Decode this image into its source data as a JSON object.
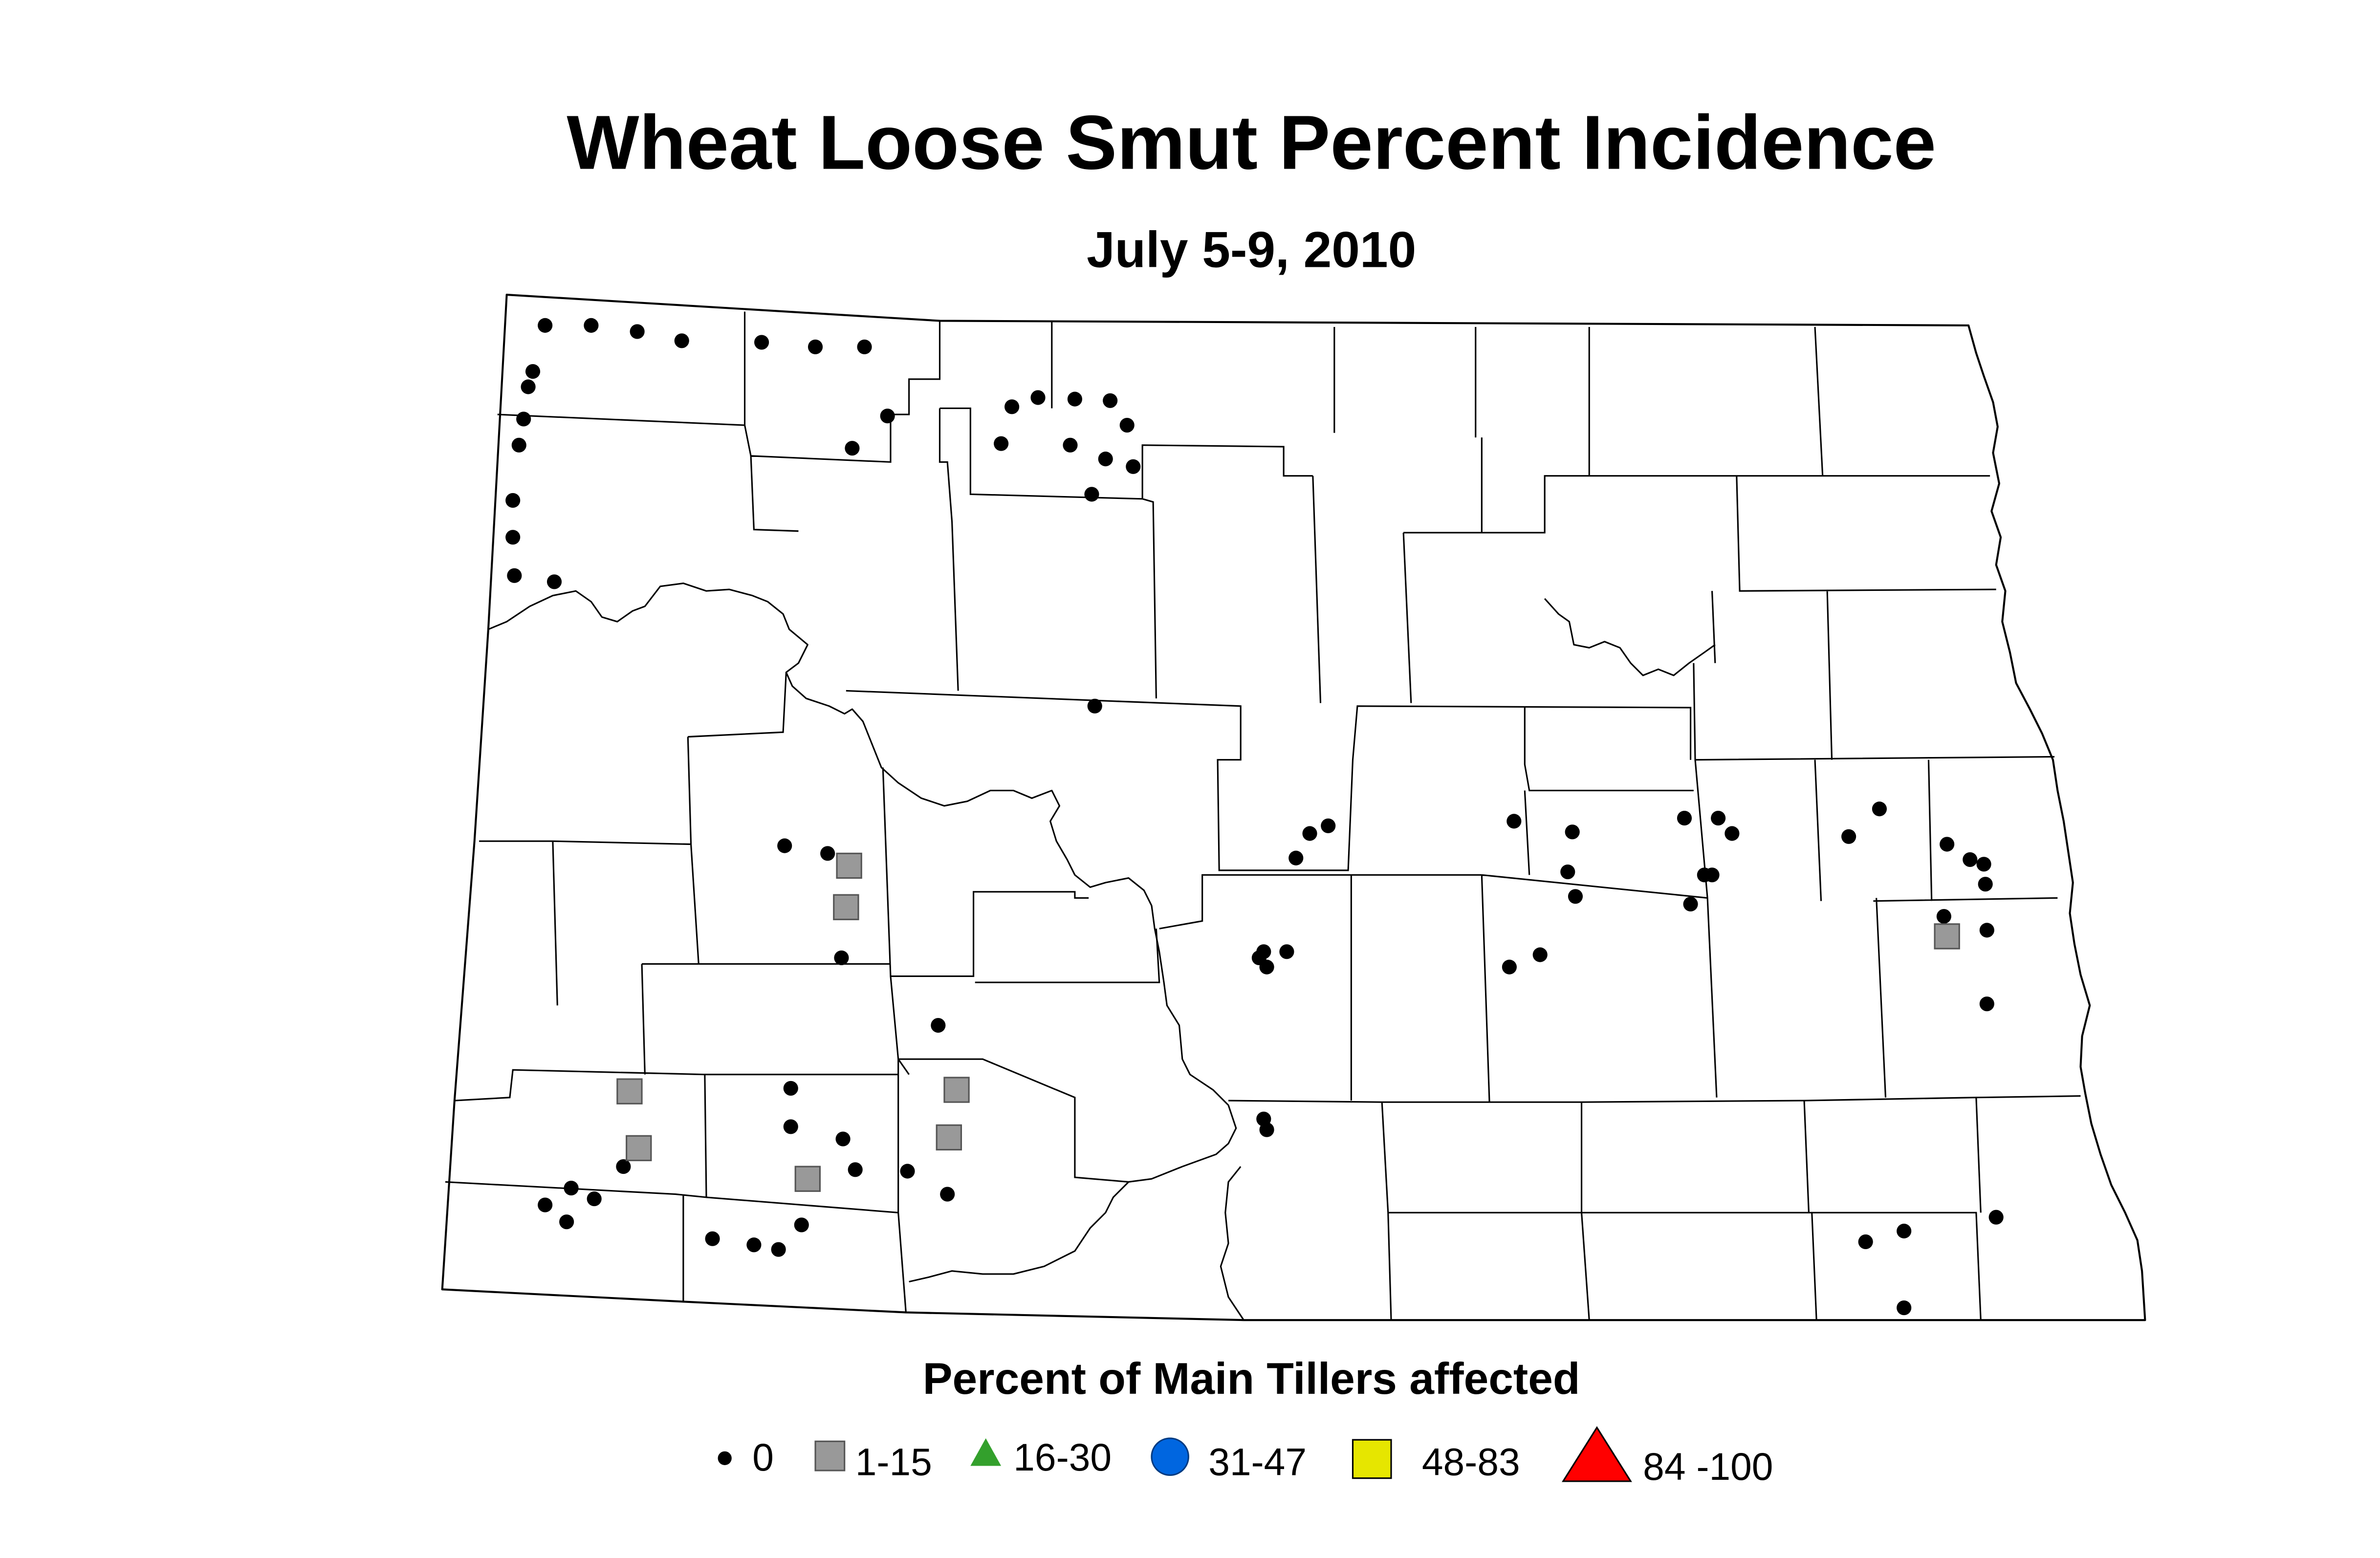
{
  "title": "Wheat Loose Smut Percent Incidence",
  "subtitle": "July 5-9, 2010",
  "legend": {
    "title": "Percent of Main Tillers affected",
    "items": [
      {
        "key": "c0",
        "label": "0",
        "shape": "circle-small",
        "color": "#000000"
      },
      {
        "key": "c1",
        "label": "1-15",
        "shape": "square",
        "color": "#999999"
      },
      {
        "key": "c2",
        "label": "16-30",
        "shape": "triangle",
        "color": "#33a02c"
      },
      {
        "key": "c3",
        "label": "31-47",
        "shape": "circle",
        "color": "#0066e0"
      },
      {
        "key": "c4",
        "label": "48-83",
        "shape": "square",
        "color": "#e6e600"
      },
      {
        "key": "c5",
        "label": "84 -100",
        "shape": "triangle-large",
        "color": "#ff0000"
      }
    ]
  },
  "survey_points_0": [
    [
      355,
      212
    ],
    [
      385,
      212
    ],
    [
      415,
      216
    ],
    [
      444,
      222
    ],
    [
      496,
      223
    ],
    [
      531,
      226
    ],
    [
      563,
      226
    ],
    [
      347,
      242
    ],
    [
      344,
      252
    ],
    [
      341,
      273
    ],
    [
      338,
      290
    ],
    [
      334,
      326
    ],
    [
      334,
      350
    ],
    [
      335,
      375
    ],
    [
      361,
      379
    ],
    [
      578,
      271
    ],
    [
      555,
      292
    ],
    [
      659,
      265
    ],
    [
      676,
      259
    ],
    [
      700,
      260
    ],
    [
      723,
      261
    ],
    [
      734,
      277
    ],
    [
      652,
      289
    ],
    [
      697,
      290
    ],
    [
      720,
      299
    ],
    [
      738,
      304
    ],
    [
      711,
      322
    ],
    [
      713,
      460
    ],
    [
      511,
      551
    ],
    [
      539,
      556
    ],
    [
      548,
      624
    ],
    [
      865,
      538
    ],
    [
      853,
      543
    ],
    [
      844,
      559
    ],
    [
      823,
      620
    ],
    [
      838,
      620
    ],
    [
      820,
      624
    ],
    [
      825,
      630
    ],
    [
      986,
      535
    ],
    [
      1024,
      542
    ],
    [
      1021,
      568
    ],
    [
      1026,
      584
    ],
    [
      983,
      630
    ],
    [
      1003,
      622
    ],
    [
      1097,
      533
    ],
    [
      1119,
      533
    ],
    [
      1128,
      543
    ],
    [
      1110,
      570
    ],
    [
      1115,
      570
    ],
    [
      1101,
      589
    ],
    [
      1224,
      527
    ],
    [
      1204,
      545
    ],
    [
      1268,
      550
    ],
    [
      1283,
      560
    ],
    [
      1292,
      563
    ],
    [
      1293,
      576
    ],
    [
      1266,
      597
    ],
    [
      1294,
      606
    ],
    [
      1294,
      654
    ],
    [
      611,
      668
    ],
    [
      515,
      709
    ],
    [
      515,
      734
    ],
    [
      549,
      742
    ],
    [
      557,
      762
    ],
    [
      591,
      763
    ],
    [
      617,
      778
    ],
    [
      406,
      760
    ],
    [
      372,
      774
    ],
    [
      387,
      781
    ],
    [
      355,
      785
    ],
    [
      369,
      796
    ],
    [
      464,
      807
    ],
    [
      491,
      811
    ],
    [
      507,
      814
    ],
    [
      522,
      798
    ],
    [
      823,
      729
    ],
    [
      825,
      736
    ],
    [
      1300,
      793
    ],
    [
      1240,
      802
    ],
    [
      1215,
      809
    ],
    [
      1240,
      852
    ]
  ],
  "survey_points_1_15": [
    [
      553,
      564
    ],
    [
      551,
      591
    ],
    [
      410,
      711
    ],
    [
      416,
      748
    ],
    [
      623,
      710
    ],
    [
      618,
      741
    ],
    [
      526,
      768
    ],
    [
      1268,
      610
    ]
  ]
}
